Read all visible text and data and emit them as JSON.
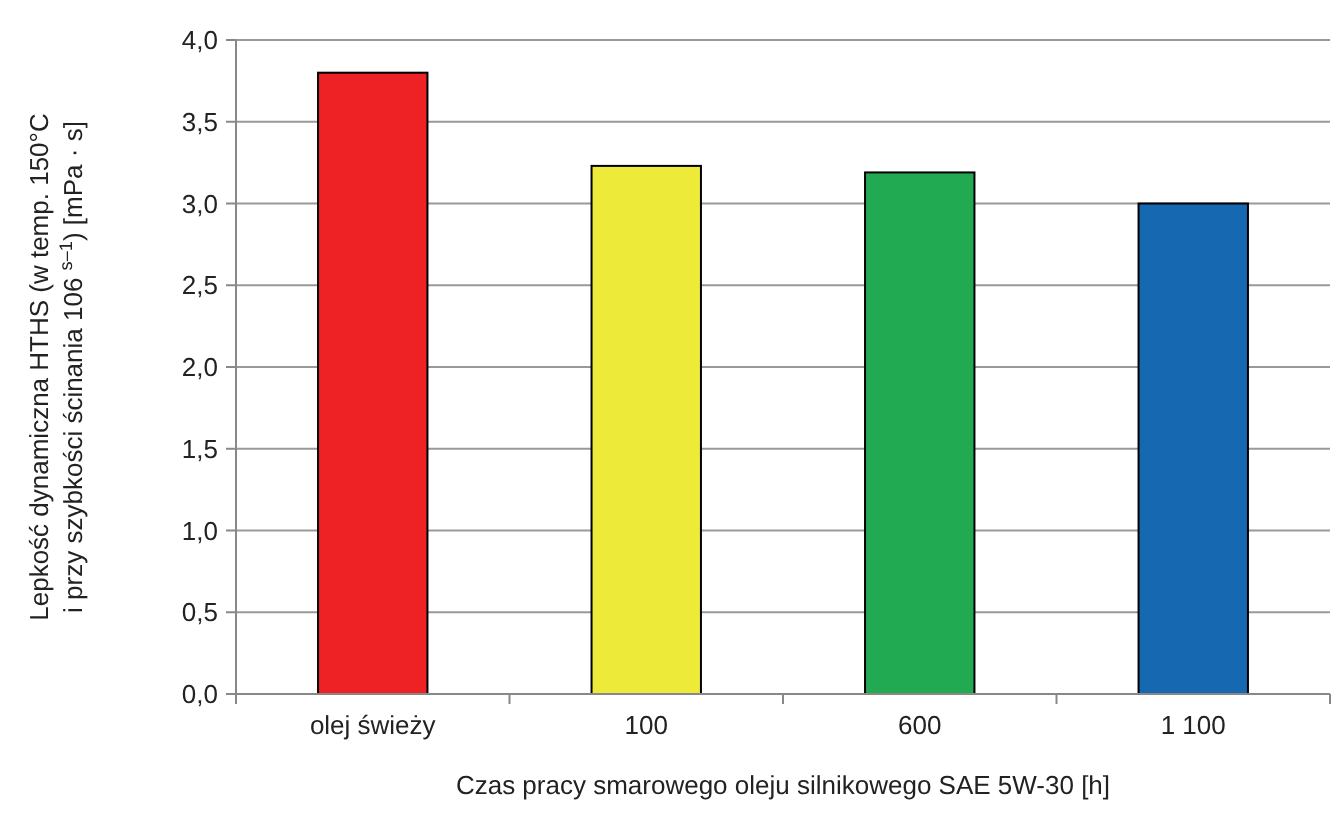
{
  "chart_data": {
    "type": "bar",
    "xlabel": "Czas pracy smarowego oleju silnikowego SAE 5W-30 [h]",
    "ylabel": [
      "Lepkość dynamiczna HTHS (w temp. 150°C",
      "i przy szybkości ścinania 106 $^{s–1}$) [mPa · s]"
    ],
    "categories": [
      "olej świeży",
      "100",
      "600",
      "1 100"
    ],
    "values": [
      3.8,
      3.23,
      3.19,
      3.0
    ],
    "colors": [
      "#ee2224",
      "#eeea3a",
      "#22aa52",
      "#1668b0"
    ],
    "ylim": [
      0,
      4
    ],
    "yticks": [
      {
        "value": 0,
        "label": "0,0"
      },
      {
        "value": 0.5,
        "label": "0,5"
      },
      {
        "value": 1,
        "label": "1,0"
      },
      {
        "value": 1.5,
        "label": "1,5"
      },
      {
        "value": 2,
        "label": "2,0"
      },
      {
        "value": 2.5,
        "label": "2,5"
      },
      {
        "value": 3,
        "label": "3,0"
      },
      {
        "value": 3.5,
        "label": "3,5"
      },
      {
        "value": 4,
        "label": "4,0"
      }
    ],
    "grid": "y"
  }
}
